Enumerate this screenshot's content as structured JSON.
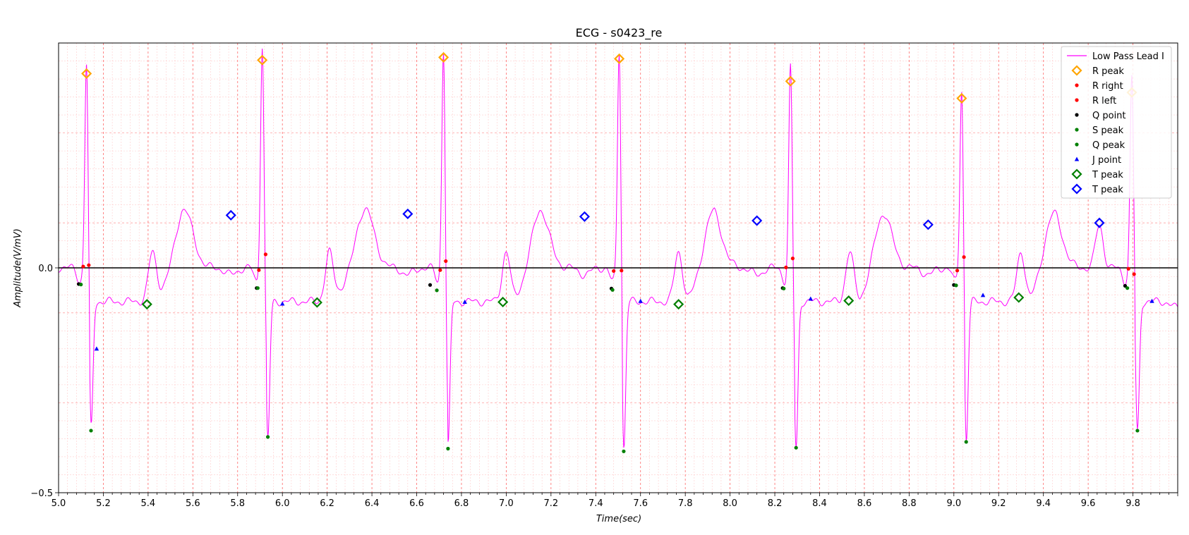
{
  "chart_data": {
    "type": "line",
    "title": "ECG - s0423_re",
    "xlabel": "Time(sec)",
    "ylabel": "Amplitude(V/mV)",
    "xlim": [
      5.0,
      10.0
    ],
    "ylim": [
      -0.5,
      0.5
    ],
    "x_ticks": [
      "5.0",
      "5.2",
      "5.4",
      "5.6",
      "5.8",
      "6.0",
      "6.2",
      "6.4",
      "6.6",
      "6.8",
      "7.0",
      "7.2",
      "7.4",
      "7.6",
      "7.8",
      "8.0",
      "8.2",
      "8.4",
      "8.6",
      "8.8",
      "9.0",
      "9.2",
      "9.4",
      "9.6",
      "9.8"
    ],
    "y_ticks": [
      "−0.5",
      "0.0"
    ],
    "grid": true,
    "zero_line": true,
    "legend_position": "top-right",
    "beats": [
      5.12,
      5.91,
      6.72,
      7.5,
      8.27,
      9.03,
      9.79
    ],
    "series": [
      {
        "name": "Low Pass Lead I",
        "kind": "line",
        "color": "#ff00ff"
      },
      {
        "name": "R peak",
        "kind": "diamond",
        "color": "#ffa500",
        "x": [
          5.125,
          5.91,
          6.72,
          7.505,
          8.27,
          9.035,
          9.795
        ],
        "y": [
          0.432,
          0.462,
          0.468,
          0.465,
          0.415,
          0.377,
          0.39
        ]
      },
      {
        "name": "R right",
        "kind": "dot",
        "color": "#ff0000",
        "x": [
          5.135,
          5.925,
          6.73,
          7.515,
          8.28,
          9.045,
          9.805
        ],
        "y": [
          0.006,
          0.03,
          0.015,
          -0.006,
          0.021,
          0.024,
          -0.014
        ]
      },
      {
        "name": "R left",
        "kind": "dot",
        "color": "#ff0000",
        "x": [
          5.11,
          5.895,
          6.705,
          7.48,
          8.25,
          9.015,
          9.78
        ],
        "y": [
          0.003,
          -0.005,
          -0.005,
          -0.007,
          0.001,
          -0.006,
          -0.002
        ]
      },
      {
        "name": "Q point",
        "kind": "dot",
        "color": "#000000",
        "x": [
          5.09,
          5.885,
          6.66,
          7.47,
          8.235,
          9.0,
          9.765
        ],
        "y": [
          -0.036,
          -0.045,
          -0.038,
          -0.046,
          -0.045,
          -0.038,
          -0.04
        ]
      },
      {
        "name": "S peak",
        "kind": "dot",
        "color": "#008000",
        "x": [
          5.145,
          5.935,
          6.74,
          7.525,
          8.295,
          9.055,
          9.82
        ],
        "y": [
          -0.362,
          -0.376,
          -0.402,
          -0.408,
          -0.4,
          -0.387,
          -0.362
        ]
      },
      {
        "name": "Q peak",
        "kind": "dot",
        "color": "#008000",
        "x": [
          5.1,
          5.89,
          6.69,
          7.475,
          8.24,
          9.01,
          9.775
        ],
        "y": [
          -0.037,
          -0.045,
          -0.05,
          -0.049,
          -0.046,
          -0.039,
          -0.045
        ]
      },
      {
        "name": "J point",
        "kind": "triangle",
        "color": "#0000ff",
        "x": [
          5.17,
          6.0,
          6.815,
          7.6,
          8.36,
          9.13,
          9.885
        ],
        "y": [
          -0.18,
          -0.08,
          -0.076,
          -0.074,
          -0.069,
          -0.061,
          -0.074
        ]
      },
      {
        "name": "T peak",
        "kind": "diamond",
        "color": "#008000",
        "x": [
          5.395,
          6.155,
          6.985,
          7.77,
          8.53,
          9.29
        ],
        "y": [
          -0.081,
          -0.077,
          -0.076,
          -0.081,
          -0.073,
          -0.066
        ]
      },
      {
        "name": "T peak",
        "kind": "diamond",
        "color": "#0000ff",
        "x": [
          5.77,
          6.56,
          7.35,
          8.12,
          8.885,
          9.65
        ],
        "y": [
          0.117,
          0.12,
          0.114,
          0.105,
          0.096,
          0.1
        ]
      }
    ]
  },
  "colors": {
    "signal": "#ff00ff",
    "major_grid": "#ff4444",
    "minor_grid": "#ffcccc",
    "zero_line": "#000000"
  }
}
